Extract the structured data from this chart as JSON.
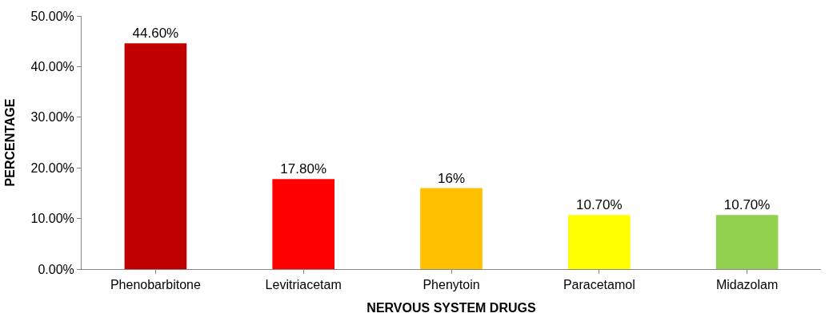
{
  "chart_data": {
    "type": "bar",
    "xlabel": "NERVOUS SYSTEM DRUGS",
    "ylabel": "PERCENTAGE",
    "categories": [
      "Phenobarbitone",
      "Levitriacetam",
      "Phenytoin",
      "Paracetamol",
      "Midazolam"
    ],
    "values": [
      44.6,
      17.8,
      16,
      10.7,
      10.7
    ],
    "value_labels": [
      "44.60%",
      "17.80%",
      "16%",
      "10.70%",
      "10.70%"
    ],
    "colors": [
      "#c00000",
      "#ff0000",
      "#ffc000",
      "#ffff00",
      "#92d050"
    ],
    "ylim": [
      0,
      50
    ],
    "yticks": [
      {
        "value": 0,
        "label": "0.00%"
      },
      {
        "value": 10,
        "label": "10.00%"
      },
      {
        "value": 20,
        "label": "20.00%"
      },
      {
        "value": 30,
        "label": "30.00%"
      },
      {
        "value": 40,
        "label": "40.00%"
      },
      {
        "value": 50,
        "label": "50.00%"
      }
    ],
    "orientation": "vertical"
  }
}
